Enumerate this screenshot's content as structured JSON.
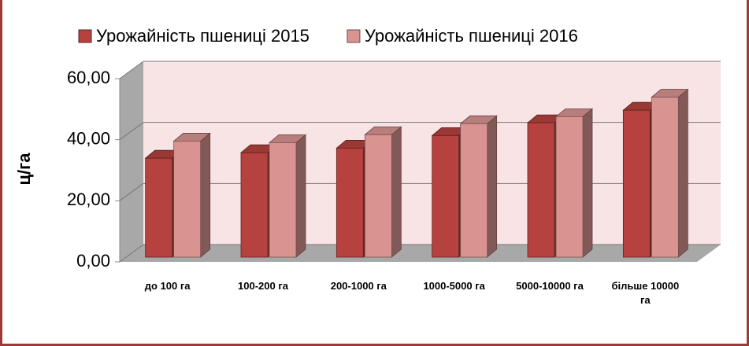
{
  "chart_data": {
    "type": "bar3d",
    "y_label": "ц/га",
    "categories": [
      "до 100 га",
      "100-200 га",
      "200-1000 га",
      "1000-5000 га",
      "5000-10000 га",
      "більше 10000 га"
    ],
    "series": [
      {
        "name": "Урожайність пшениці 2015",
        "color": "#b5423e",
        "values": [
          32.4,
          34.2,
          35.7,
          39.8,
          44.0,
          48.1
        ]
      },
      {
        "name": "Урожайність пшениці 2016",
        "color": "#d99491",
        "values": [
          38.0,
          37.5,
          40.1,
          43.7,
          46.0,
          52.4
        ]
      }
    ],
    "ylim": [
      0,
      60
    ],
    "yticks": [
      {
        "value": 0,
        "label": "0,00"
      },
      {
        "value": 20,
        "label": "20,00"
      },
      {
        "value": 40,
        "label": "40,00"
      },
      {
        "value": 60,
        "label": "60,00"
      }
    ],
    "grid": true
  }
}
